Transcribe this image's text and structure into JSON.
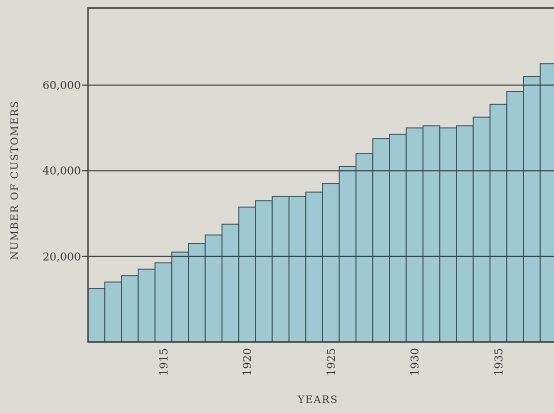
{
  "chart_data": {
    "type": "bar",
    "title": "",
    "xlabel": "YEARS",
    "ylabel": "NUMBER OF CUSTOMERS",
    "ylim": [
      0,
      78000
    ],
    "grid": "horizontal",
    "bar_color": "#9ec8d2",
    "y_ticks": [
      {
        "value": 20000,
        "label": "20,000"
      },
      {
        "value": 40000,
        "label": "40,000"
      },
      {
        "value": 60000,
        "label": "60,000"
      }
    ],
    "x_ticks": [
      {
        "year": 1915,
        "label": "1915"
      },
      {
        "year": 1920,
        "label": "1920"
      },
      {
        "year": 1925,
        "label": "1925"
      },
      {
        "year": 1930,
        "label": "1930"
      },
      {
        "year": 1935,
        "label": "1935"
      }
    ],
    "x": [
      1911,
      1912,
      1913,
      1914,
      1915,
      1916,
      1917,
      1918,
      1919,
      1920,
      1921,
      1922,
      1923,
      1924,
      1925,
      1926,
      1927,
      1928,
      1929,
      1930,
      1931,
      1932,
      1933,
      1934,
      1935,
      1936,
      1937,
      1938
    ],
    "values": [
      12500,
      14000,
      15500,
      17000,
      18500,
      21000,
      23000,
      25000,
      27500,
      31500,
      33000,
      34000,
      34000,
      35000,
      37000,
      41000,
      44000,
      47500,
      48500,
      50000,
      50500,
      50000,
      50500,
      52500,
      55500,
      58500,
      62000,
      65000
    ]
  }
}
